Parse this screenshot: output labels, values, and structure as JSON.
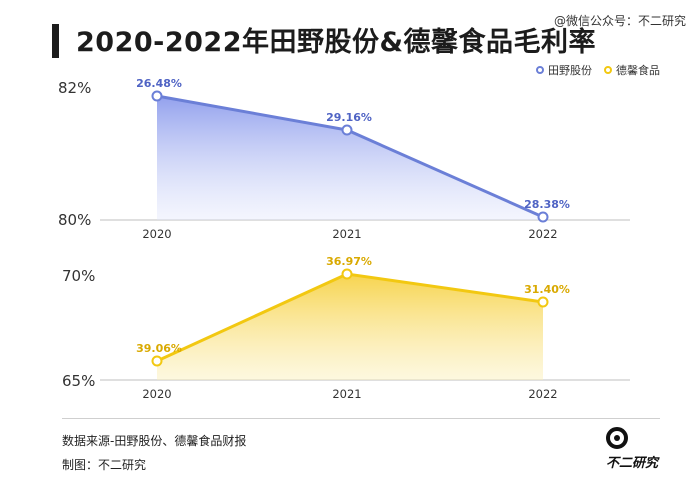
{
  "title": "2020-2022年田野股份&德馨食品毛利率",
  "watermark": "@微信公众号：不二研究",
  "source": "数据来源-田野股份、德馨食品财报",
  "credit": "制图：不二研究",
  "brand": "不二研究",
  "colors": {
    "series_1": "#6b7fd7",
    "series_2": "#f2c811"
  },
  "chart_data": [
    {
      "type": "area",
      "categories": [
        "2020",
        "2021",
        "2022"
      ],
      "series": [
        {
          "name": "田野股份",
          "values": [
            26.48,
            29.16,
            28.38
          ],
          "labels": [
            "26.48%",
            "29.16%",
            "28.38%"
          ]
        }
      ],
      "y_tick_labels": [
        "82%",
        "80%"
      ],
      "legend": [
        "田野股份",
        "德馨食品"
      ],
      "legend_position": "top-right"
    },
    {
      "type": "area",
      "categories": [
        "2020",
        "2021",
        "2022"
      ],
      "series": [
        {
          "name": "德馨食品",
          "values": [
            39.06,
            36.97,
            31.4
          ],
          "labels": [
            "39.06%",
            "36.97%",
            "31.40%"
          ]
        }
      ],
      "y_tick_labels": [
        "70%",
        "65%"
      ]
    }
  ]
}
